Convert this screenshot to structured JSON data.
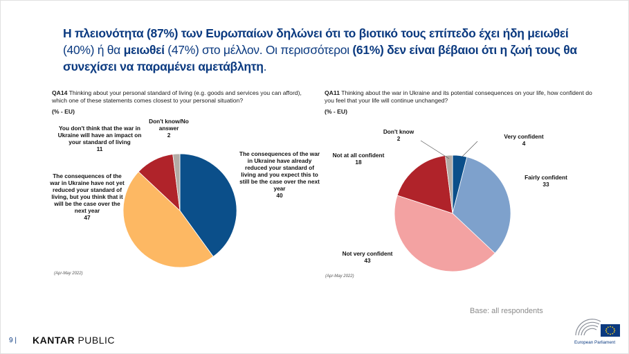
{
  "title": {
    "p1": "Η πλειονότητα (87%) των Ευρωπαίων δηλώνει ότι το βιοτικό τους επίπεδο έχει ήδη μειωθεί",
    "p2": " (40%) ή θα",
    "p3": "μειωθεί",
    "p4": " (47%) στο μέλλον. Οι περισσότεροι ",
    "p5": "(61%) δεν είναι βέβαιοι ότι η ζωή τους θα συνεχίσει να παραμένει αμετάβλητη",
    "p6": "."
  },
  "left": {
    "question_code": "QA14",
    "question_text": " Thinking about your personal standard of living (e.g. goods and services you can afford), which one of these statements comes closest to your personal situation?",
    "unit": "(% - EU)",
    "source": "(Apr-May 2022)"
  },
  "right": {
    "question_code": "QA11",
    "question_text": " Thinking about the war in Ukraine and its potential consequences on your life, how confident do you feel that your life will continue unchanged?",
    "unit": "(% - EU)",
    "source": "(Apr-May 2022)"
  },
  "chart_data": [
    {
      "type": "pie",
      "title": "",
      "slices": [
        {
          "label": "The consequences of the war in Ukraine have already reduced your standard of living and you expect this to still be the case over the next year",
          "value": 40,
          "color": "#0b4f8a"
        },
        {
          "label": "The consequences of the war in Ukraine have not yet reduced your standard of living, but you think that it will be the case over the next year",
          "value": 47,
          "color": "#fdb863"
        },
        {
          "label": "You don't think that the war in Ukraine will have an impact on your standard of living",
          "value": 11,
          "color": "#b0232a"
        },
        {
          "label": "Don't know/No answer",
          "value": 2,
          "color": "#b3aba5"
        }
      ]
    },
    {
      "type": "pie",
      "title": "",
      "slices": [
        {
          "label": "Very confident",
          "value": 4,
          "color": "#0b4f8a"
        },
        {
          "label": "Fairly confident",
          "value": 33,
          "color": "#7ea1cc"
        },
        {
          "label": "Not very confident",
          "value": 43,
          "color": "#f3a2a2"
        },
        {
          "label": "Not at all confident",
          "value": 18,
          "color": "#b0232a"
        },
        {
          "label": "Don't know",
          "value": 2,
          "color": "#b3aba5"
        }
      ]
    }
  ],
  "footer": {
    "base": "Base: all respondents",
    "page": "9 |",
    "kantar_bold": "KANTAR",
    "kantar_light": " PUBLIC",
    "ep_label": "European Parliament"
  }
}
